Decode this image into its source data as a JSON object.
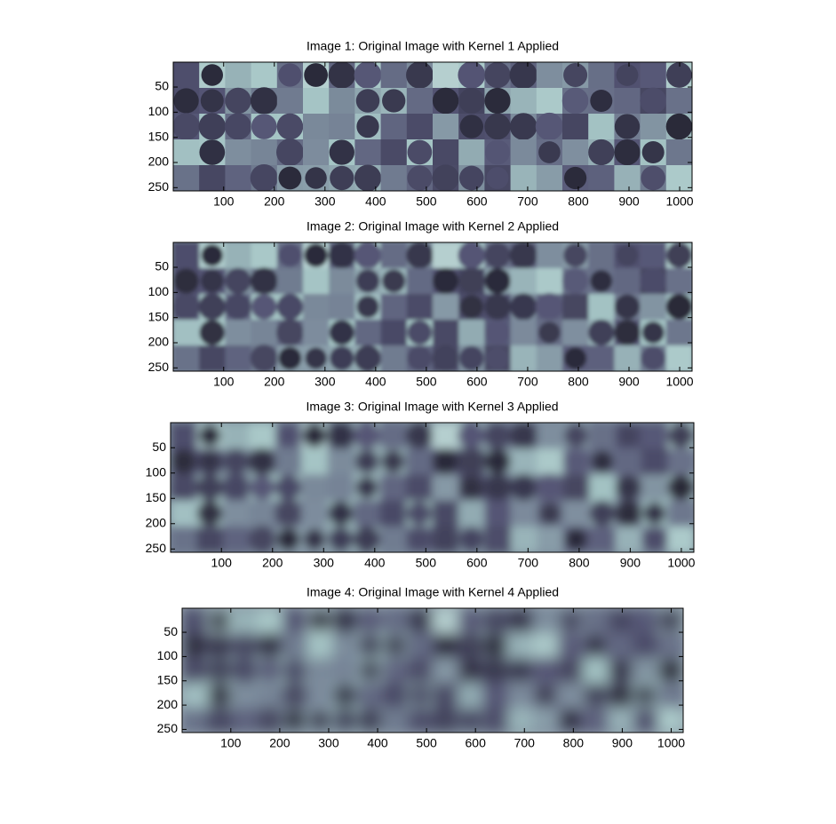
{
  "chart_data": [
    {
      "type": "image",
      "title": "Image 1: Original Image with Kernel 1 Applied",
      "colormap": "bone",
      "xlim": [
        0.5,
        1024.5
      ],
      "ylim": [
        0.5,
        256.5
      ],
      "yreverse": true,
      "xticks": [
        100,
        200,
        300,
        400,
        500,
        600,
        700,
        800,
        900,
        1000
      ],
      "yticks": [
        50,
        100,
        150,
        200,
        250
      ]
    },
    {
      "type": "image",
      "title": "Image 2: Original Image with Kernel 2 Applied",
      "colormap": "bone",
      "xlim": [
        0.5,
        1024.5
      ],
      "ylim": [
        0.5,
        256.5
      ],
      "yreverse": true,
      "xticks": [
        100,
        200,
        300,
        400,
        500,
        600,
        700,
        800,
        900,
        1000
      ],
      "yticks": [
        50,
        100,
        150,
        200,
        250
      ]
    },
    {
      "type": "image",
      "title": "Image 3: Original Image with Kernel 3 Applied",
      "colormap": "bone",
      "xlim": [
        0.5,
        1024.5
      ],
      "ylim": [
        0.5,
        256.5
      ],
      "yreverse": true,
      "xticks": [
        100,
        200,
        300,
        400,
        500,
        600,
        700,
        800,
        900,
        1000
      ],
      "yticks": [
        50,
        100,
        150,
        200,
        250
      ]
    },
    {
      "type": "image",
      "title": "Image 4: Original Image with Kernel 4 Applied",
      "colormap": "bone",
      "xlim": [
        0.5,
        1024.5
      ],
      "ylim": [
        0.5,
        256.5
      ],
      "yreverse": true,
      "xticks": [
        100,
        200,
        300,
        400,
        500,
        600,
        700,
        800,
        900,
        1000
      ],
      "yticks": [
        50,
        100,
        150,
        200,
        250
      ]
    }
  ]
}
